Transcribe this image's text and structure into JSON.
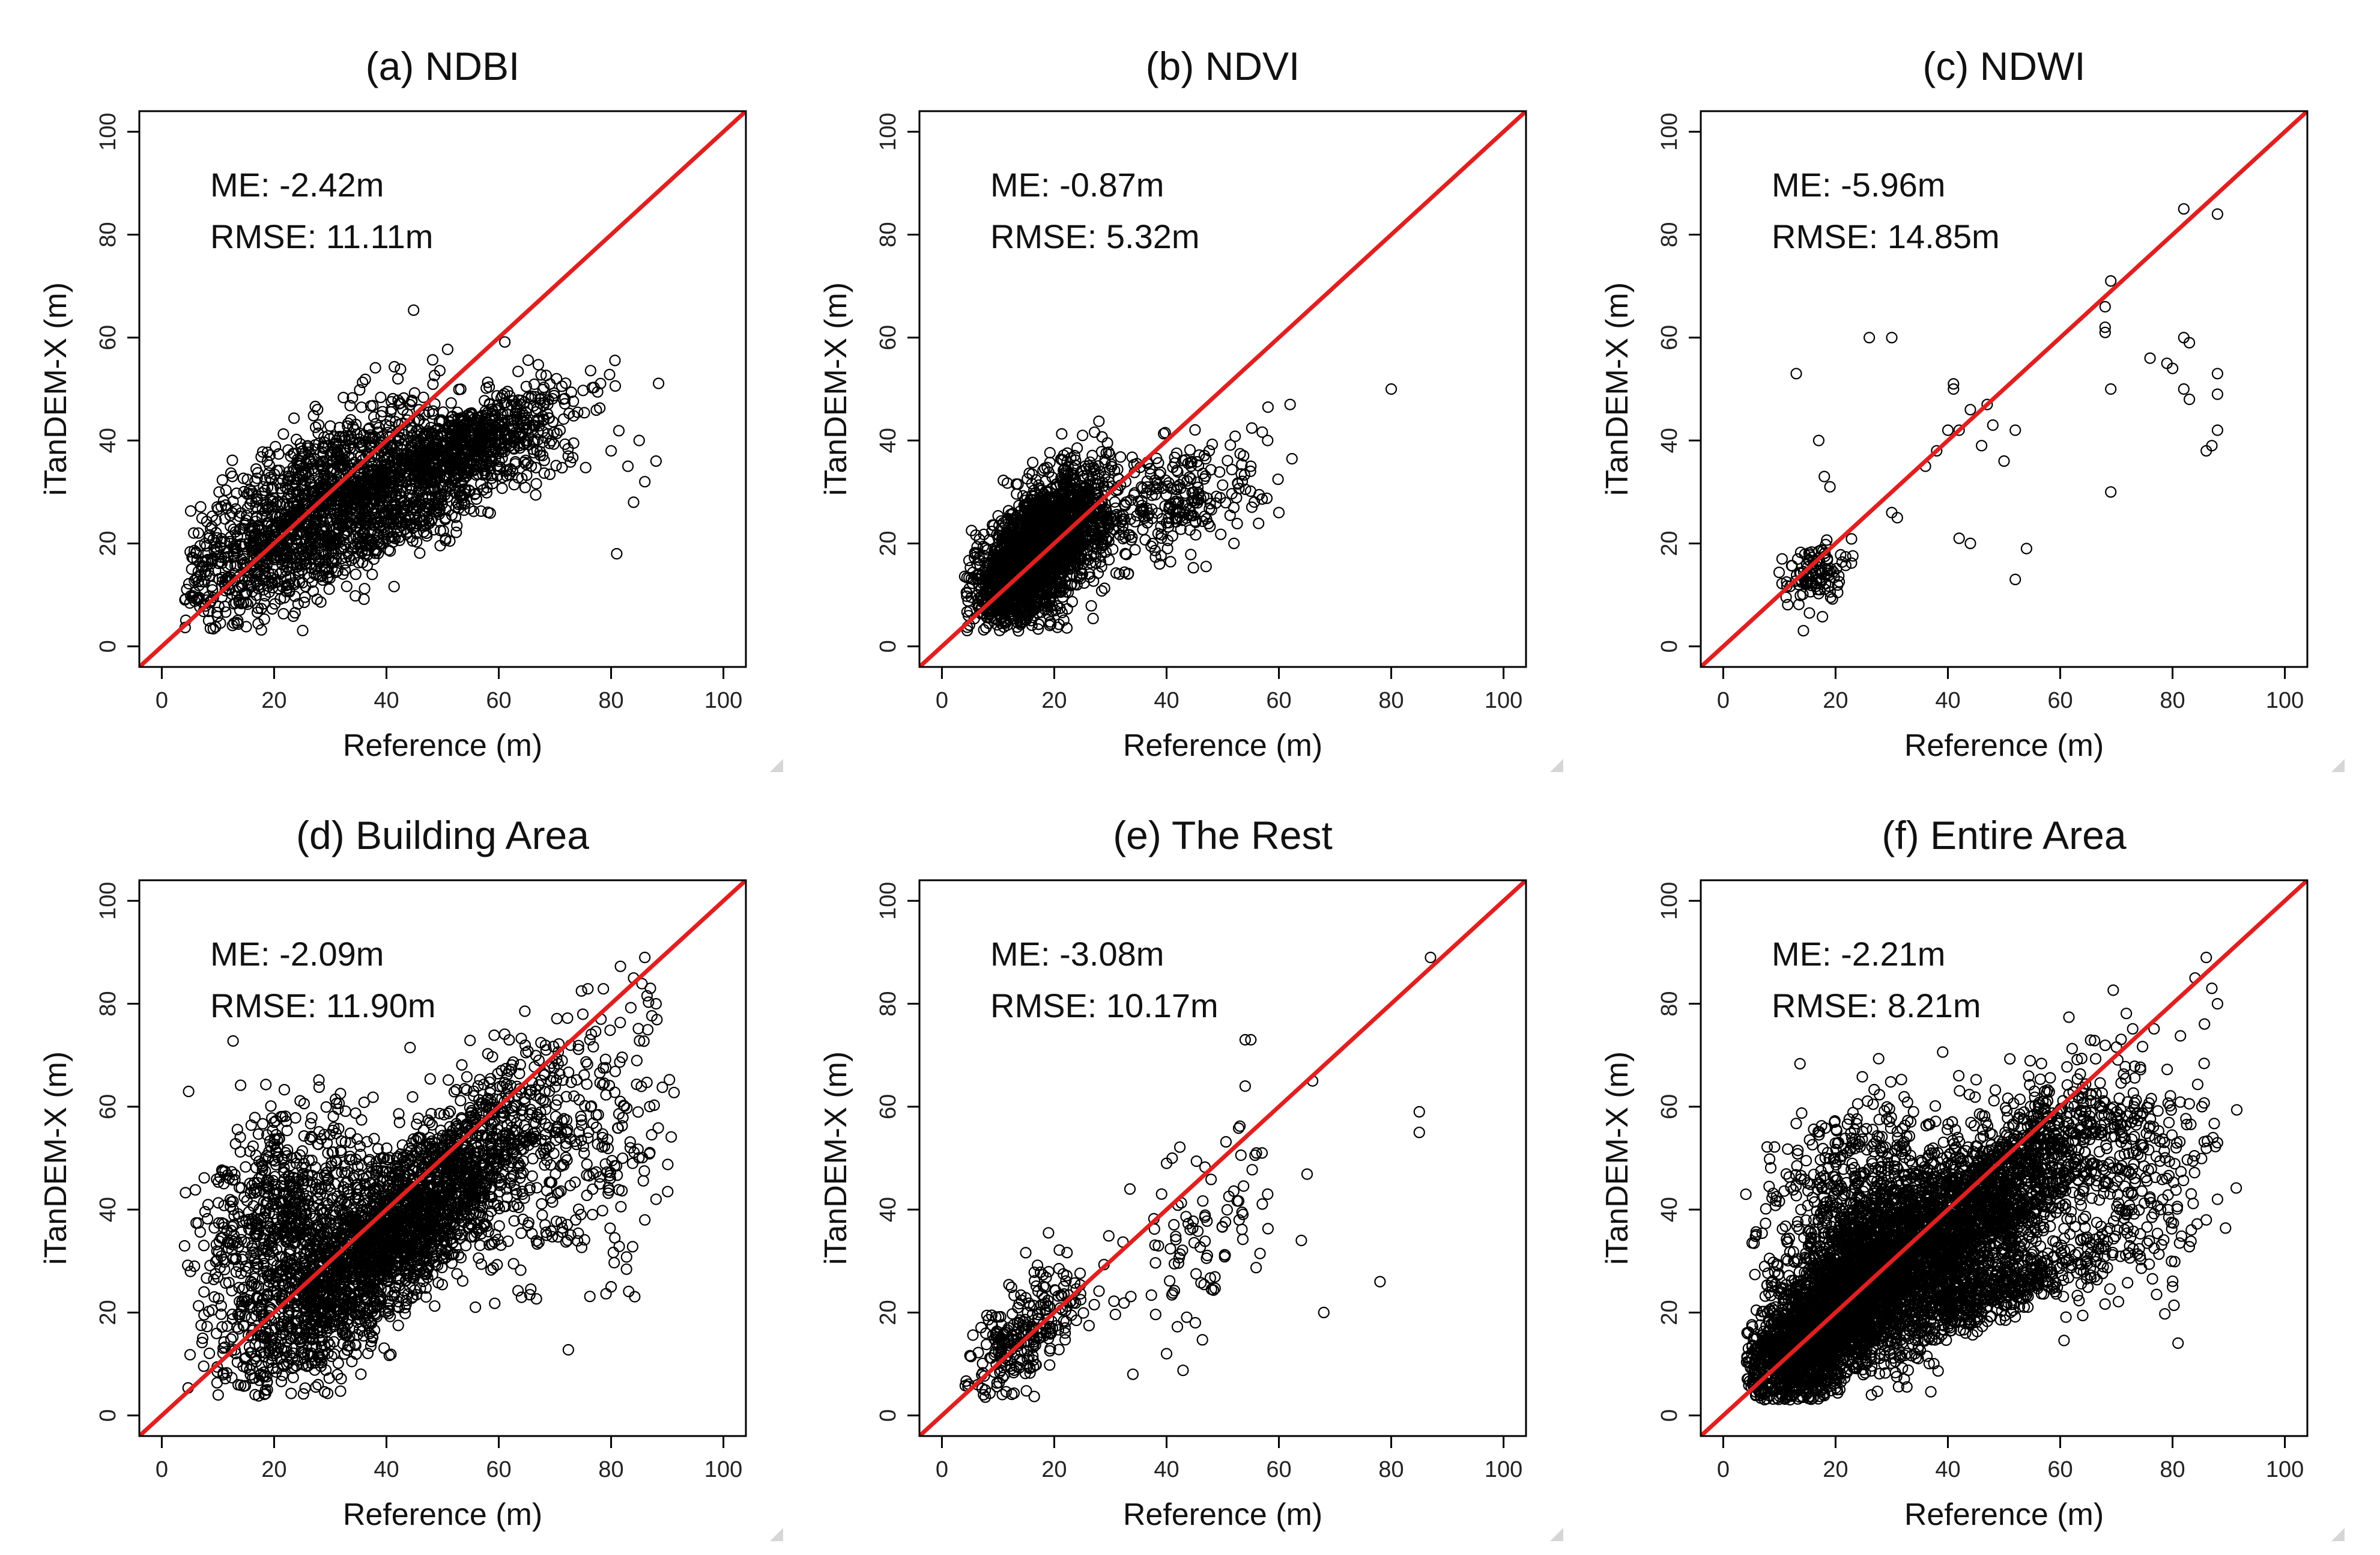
{
  "chart_data": [
    {
      "type": "scatter",
      "title": "(a) NDBI",
      "xlabel": "Reference (m)",
      "ylabel": "iTanDEM-X (m)",
      "xlim": [
        0,
        100
      ],
      "ylim": [
        0,
        100
      ],
      "xticks": [
        "0",
        "20",
        "40",
        "60",
        "80",
        "100"
      ],
      "yticks": [
        "0",
        "20",
        "40",
        "60",
        "80",
        "100"
      ],
      "stats": [
        "ME: -2.42m",
        "RMSE: 11.11m"
      ],
      "reference_line": {
        "type": "identity",
        "color": "#e02020"
      },
      "point_color": "#000000",
      "clusters": [
        {
          "cx": 25,
          "cy": 25,
          "sx": 12,
          "sy": 8,
          "slope": 0.65,
          "n": 1400
        },
        {
          "cx": 52,
          "cy": 38,
          "sx": 10,
          "sy": 4,
          "slope": 0.45,
          "n": 900
        },
        {
          "cx": 45,
          "cy": 25,
          "sx": 12,
          "sy": 3,
          "slope": 0.45,
          "n": 300
        }
      ],
      "points": [
        [
          80,
          38
        ],
        [
          83,
          35
        ],
        [
          85,
          40
        ],
        [
          88,
          36
        ],
        [
          81,
          18
        ],
        [
          84,
          28
        ],
        [
          86,
          32
        ]
      ]
    },
    {
      "type": "scatter",
      "title": "(b) NDVI",
      "xlabel": "Reference (m)",
      "ylabel": "iTanDEM-X (m)",
      "xlim": [
        0,
        100
      ],
      "ylim": [
        0,
        100
      ],
      "xticks": [
        "0",
        "20",
        "40",
        "60",
        "80",
        "100"
      ],
      "yticks": [
        "0",
        "20",
        "40",
        "60",
        "80",
        "100"
      ],
      "stats": [
        "ME: -0.87m",
        "RMSE: 5.32m"
      ],
      "reference_line": {
        "type": "identity",
        "color": "#e02020"
      },
      "point_color": "#000000",
      "clusters": [
        {
          "cx": 17,
          "cy": 18,
          "sx": 6,
          "sy": 6,
          "slope": 0.8,
          "n": 2200
        },
        {
          "cx": 40,
          "cy": 28,
          "sx": 9,
          "sy": 6,
          "slope": 0.3,
          "n": 300
        }
      ],
      "points": [
        [
          80,
          50
        ],
        [
          62,
          47
        ],
        [
          58,
          40
        ],
        [
          55,
          35
        ],
        [
          52,
          20
        ],
        [
          60,
          26
        ]
      ]
    },
    {
      "type": "scatter",
      "title": "(c) NDWI",
      "xlabel": "Reference (m)",
      "ylabel": "iTanDEM-X (m)",
      "xlim": [
        0,
        100
      ],
      "ylim": [
        0,
        100
      ],
      "xticks": [
        "0",
        "20",
        "40",
        "60",
        "80",
        "100"
      ],
      "yticks": [
        "0",
        "20",
        "40",
        "60",
        "80",
        "100"
      ],
      "stats": [
        "ME: -5.96m",
        "RMSE: 14.85m"
      ],
      "reference_line": {
        "type": "identity",
        "color": "#e02020"
      },
      "point_color": "#000000",
      "clusters": [
        {
          "cx": 16,
          "cy": 14,
          "sx": 2.5,
          "sy": 3,
          "slope": 0.2,
          "n": 110
        }
      ],
      "points": [
        [
          13,
          53
        ],
        [
          17,
          40
        ],
        [
          18,
          33
        ],
        [
          19,
          31
        ],
        [
          26,
          60
        ],
        [
          30,
          60
        ],
        [
          30,
          26
        ],
        [
          31,
          25
        ],
        [
          40,
          42
        ],
        [
          41,
          50
        ],
        [
          41,
          51
        ],
        [
          42,
          21
        ],
        [
          44,
          20
        ],
        [
          44,
          46
        ],
        [
          46,
          39
        ],
        [
          48,
          43
        ],
        [
          50,
          36
        ],
        [
          52,
          42
        ],
        [
          52,
          13
        ],
        [
          54,
          19
        ],
        [
          68,
          66
        ],
        [
          68,
          62
        ],
        [
          68,
          61
        ],
        [
          69,
          71
        ],
        [
          69,
          50
        ],
        [
          69,
          30
        ],
        [
          76,
          56
        ],
        [
          79,
          55
        ],
        [
          80,
          54
        ],
        [
          82,
          85
        ],
        [
          82,
          60
        ],
        [
          83,
          59
        ],
        [
          82,
          50
        ],
        [
          83,
          48
        ],
        [
          88,
          84
        ],
        [
          88,
          53
        ],
        [
          88,
          49
        ],
        [
          88,
          42
        ],
        [
          87,
          39
        ],
        [
          86,
          38
        ],
        [
          38,
          38
        ],
        [
          42,
          42
        ],
        [
          47,
          47
        ],
        [
          36,
          35
        ]
      ]
    },
    {
      "type": "scatter",
      "title": "(d) Building Area",
      "xlabel": "Reference (m)",
      "ylabel": "iTanDEM-X (m)",
      "xlim": [
        0,
        100
      ],
      "ylim": [
        0,
        100
      ],
      "xticks": [
        "0",
        "20",
        "40",
        "60",
        "80",
        "100"
      ],
      "yticks": [
        "0",
        "20",
        "40",
        "60",
        "80",
        "100"
      ],
      "stats": [
        "ME: -2.09m",
        "RMSE: 11.90m"
      ],
      "reference_line": {
        "type": "identity",
        "color": "#e02020"
      },
      "point_color": "#000000",
      "clusters": [
        {
          "cx": 42,
          "cy": 36,
          "sx": 14,
          "sy": 8,
          "slope": 0.9,
          "n": 2600
        },
        {
          "cx": 22,
          "cy": 38,
          "sx": 8,
          "sy": 10,
          "slope": 0.4,
          "n": 700
        },
        {
          "cx": 75,
          "cy": 50,
          "sx": 8,
          "sy": 12,
          "slope": 0.3,
          "n": 200
        }
      ],
      "points": [
        [
          86,
          89
        ],
        [
          84,
          85
        ],
        [
          87,
          83
        ],
        [
          88,
          80
        ],
        [
          80,
          25
        ],
        [
          86,
          38
        ],
        [
          88,
          42
        ]
      ]
    },
    {
      "type": "scatter",
      "title": "(e) The Rest",
      "xlabel": "Reference (m)",
      "ylabel": "iTanDEM-X (m)",
      "xlim": [
        0,
        100
      ],
      "ylim": [
        0,
        100
      ],
      "xticks": [
        "0",
        "20",
        "40",
        "60",
        "80",
        "100"
      ],
      "yticks": [
        "0",
        "20",
        "40",
        "60",
        "80",
        "100"
      ],
      "stats": [
        "ME: -3.08m",
        "RMSE: 10.17m"
      ],
      "reference_line": {
        "type": "identity",
        "color": "#e02020"
      },
      "point_color": "#000000",
      "clusters": [
        {
          "cx": 15,
          "cy": 16,
          "sx": 5,
          "sy": 5,
          "slope": 0.8,
          "n": 260
        },
        {
          "cx": 45,
          "cy": 35,
          "sx": 7,
          "sy": 9,
          "slope": 0.5,
          "n": 90
        }
      ],
      "points": [
        [
          87,
          89
        ],
        [
          85,
          59
        ],
        [
          85,
          55
        ],
        [
          66,
          65
        ],
        [
          68,
          20
        ],
        [
          64,
          34
        ],
        [
          55,
          73
        ],
        [
          54,
          73
        ],
        [
          54,
          64
        ],
        [
          78,
          26
        ],
        [
          57,
          51
        ],
        [
          56,
          51
        ],
        [
          41,
          50
        ],
        [
          40,
          49
        ],
        [
          58,
          43
        ],
        [
          34,
          8
        ],
        [
          40,
          12
        ]
      ]
    },
    {
      "type": "scatter",
      "title": "(f) Entire Area",
      "xlabel": "Reference (m)",
      "ylabel": "iTanDEM-X (m)",
      "xlim": [
        0,
        100
      ],
      "ylim": [
        0,
        100
      ],
      "xticks": [
        "0",
        "20",
        "40",
        "60",
        "80",
        "100"
      ],
      "yticks": [
        "0",
        "20",
        "40",
        "60",
        "80",
        "100"
      ],
      "stats": [
        "ME: -2.21m",
        "RMSE: 8.21m"
      ],
      "reference_line": {
        "type": "identity",
        "color": "#e02020"
      },
      "point_color": "#000000",
      "clusters": [
        {
          "cx": 18,
          "cy": 18,
          "sx": 8,
          "sy": 7,
          "slope": 0.9,
          "n": 2400
        },
        {
          "cx": 42,
          "cy": 36,
          "sx": 13,
          "sy": 8,
          "slope": 0.8,
          "n": 2600
        },
        {
          "cx": 24,
          "cy": 40,
          "sx": 8,
          "sy": 10,
          "slope": 0.4,
          "n": 700
        },
        {
          "cx": 48,
          "cy": 24,
          "sx": 12,
          "sy": 3,
          "slope": 0.4,
          "n": 500
        },
        {
          "cx": 75,
          "cy": 48,
          "sx": 8,
          "sy": 12,
          "slope": 0.3,
          "n": 250
        }
      ],
      "points": [
        [
          86,
          89
        ],
        [
          84,
          85
        ],
        [
          87,
          83
        ],
        [
          88,
          80
        ],
        [
          80,
          25
        ],
        [
          86,
          38
        ],
        [
          88,
          42
        ],
        [
          88,
          53
        ]
      ]
    }
  ]
}
